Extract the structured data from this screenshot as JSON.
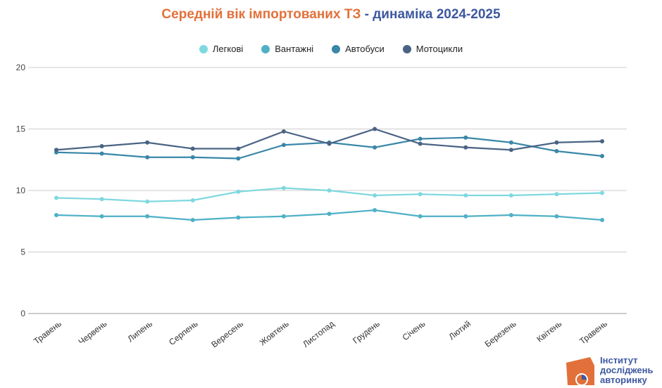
{
  "chart_data": {
    "type": "line",
    "title_part1": "Середній вік імпортованих ТЗ",
    "title_part2": "- динаміка 2024-2025",
    "xlabel": "",
    "ylabel": "",
    "ylim": [
      0,
      20
    ],
    "yticks": [
      "0",
      "5",
      "10",
      "15",
      "20"
    ],
    "grid": true,
    "legend_position": "top",
    "categories": [
      "Травень",
      "Червень",
      "Липень",
      "Серпень",
      "Вересень",
      "Жовтень",
      "Листопад",
      "Грудень",
      "Січень",
      "Лютий",
      "Березень",
      "Квітень",
      "Травень"
    ],
    "series": [
      {
        "name": "Легкові",
        "color": "#7fd8df",
        "values": [
          9.4,
          9.3,
          9.1,
          9.2,
          9.9,
          10.2,
          10.0,
          9.6,
          9.7,
          9.6,
          9.6,
          9.7,
          9.8
        ]
      },
      {
        "name": "Вантажні",
        "color": "#4fb0c6",
        "values": [
          8.0,
          7.9,
          7.9,
          7.6,
          7.8,
          7.9,
          8.1,
          8.4,
          7.9,
          7.9,
          8.0,
          7.9,
          7.6
        ]
      },
      {
        "name": "Автобуси",
        "color": "#3a87a8",
        "values": [
          13.1,
          13.0,
          12.7,
          12.7,
          12.6,
          13.7,
          13.9,
          13.5,
          14.2,
          14.3,
          13.9,
          13.2,
          12.8
        ]
      },
      {
        "name": "Мотоцикли",
        "color": "#4a6384",
        "values": [
          13.3,
          13.6,
          13.9,
          13.4,
          13.4,
          14.8,
          13.8,
          15.0,
          13.8,
          13.5,
          13.3,
          13.9,
          14.0
        ]
      }
    ]
  },
  "logo": {
    "line1": "Інститут",
    "line2": "досліджень",
    "line3": "авторинку"
  }
}
